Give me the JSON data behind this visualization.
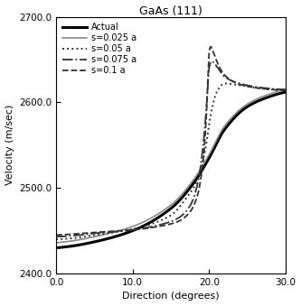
{
  "title": "GaAs (111)",
  "xlabel": "Direction (degrees)",
  "ylabel": "Velocity (m/sec)",
  "xlim": [
    0.0,
    30.0
  ],
  "ylim": [
    2400.0,
    2700.0
  ],
  "xticks": [
    0.0,
    10.0,
    20.0,
    30.0
  ],
  "yticks": [
    2400.0,
    2500.0,
    2600.0,
    2700.0
  ],
  "background_color": "#ffffff",
  "legend_fontsize": 7.0,
  "axis_fontsize": 8,
  "title_fontsize": 9,
  "tick_fontsize": 7.5,
  "lines": [
    {
      "label": "Actual",
      "style": "solid",
      "color": "#000000",
      "linewidth": 2.2,
      "type": "piecewise",
      "points_x": [
        0.0,
        2.0,
        5.0,
        10.0,
        15.0,
        18.0,
        20.0,
        22.0,
        25.0,
        28.0,
        30.0
      ],
      "points_y": [
        2430.0,
        2432.0,
        2437.0,
        2450.0,
        2476.0,
        2506.0,
        2535.0,
        2568.0,
        2595.0,
        2607.0,
        2612.0
      ]
    },
    {
      "label": "s=0.025 a",
      "style": "solid",
      "color": "#888888",
      "linewidth": 1.2,
      "type": "piecewise",
      "points_x": [
        0.0,
        2.0,
        5.0,
        10.0,
        15.0,
        18.0,
        20.0,
        22.0,
        25.0,
        28.0,
        30.0
      ],
      "points_y": [
        2436.0,
        2438.0,
        2443.0,
        2455.0,
        2480.0,
        2510.0,
        2539.0,
        2572.0,
        2598.0,
        2610.0,
        2615.0
      ]
    },
    {
      "label": "s=0.05 a",
      "style": "dotted",
      "color": "#333333",
      "linewidth": 1.4,
      "type": "piecewise",
      "points_x": [
        0.0,
        2.0,
        5.0,
        10.0,
        15.0,
        17.0,
        18.5,
        19.5,
        20.2,
        21.0,
        22.0,
        24.0,
        27.0,
        30.0
      ],
      "points_y": [
        2440.0,
        2441.0,
        2445.0,
        2452.0,
        2468.0,
        2488.0,
        2510.0,
        2545.0,
        2585.0,
        2612.0,
        2622.0,
        2620.0,
        2616.0,
        2614.0
      ]
    },
    {
      "label": "s=0.075 a",
      "style": "dashdot",
      "color": "#333333",
      "linewidth": 1.3,
      "type": "piecewise",
      "points_x": [
        0.0,
        2.0,
        5.0,
        10.0,
        14.0,
        16.0,
        17.5,
        18.5,
        19.2,
        19.7,
        20.0,
        20.3,
        21.0,
        22.0,
        24.0,
        27.0,
        30.0
      ],
      "points_y": [
        2443.0,
        2444.0,
        2447.0,
        2451.0,
        2458.0,
        2465.0,
        2479.0,
        2505.0,
        2548.0,
        2600.0,
        2640.0,
        2648.0,
        2642.0,
        2630.0,
        2622.0,
        2617.0,
        2615.0
      ]
    },
    {
      "label": "s=0.1 a",
      "style": "dashed",
      "color": "#333333",
      "linewidth": 1.3,
      "type": "piecewise",
      "points_x": [
        0.0,
        2.0,
        5.0,
        10.0,
        14.0,
        16.0,
        17.5,
        18.5,
        19.2,
        19.6,
        19.8,
        20.0,
        20.2,
        20.5,
        21.0,
        22.0,
        24.0,
        27.0,
        30.0
      ],
      "points_y": [
        2445.0,
        2446.0,
        2448.0,
        2451.0,
        2456.0,
        2461.0,
        2472.0,
        2492.0,
        2530.0,
        2578.0,
        2618.0,
        2658.0,
        2665.0,
        2660.0,
        2648.0,
        2632.0,
        2621.0,
        2616.0,
        2614.0
      ]
    }
  ]
}
